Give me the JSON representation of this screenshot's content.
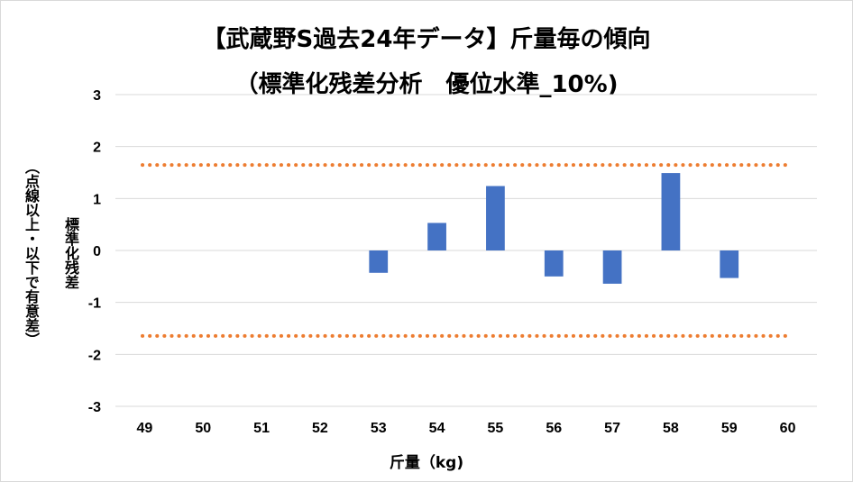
{
  "chart_data": {
    "type": "bar",
    "title_line1": "【武蔵野S過去24年データ】斤量毎の傾向",
    "title_line2": "（標準化残差分析　優位水準_10%)",
    "xlabel": "斤量（kg)",
    "ylabel_line1": "標準化残差",
    "ylabel_line2": "（点線以上・以下で有意差）",
    "categories": [
      "49",
      "50",
      "51",
      "52",
      "53",
      "54",
      "55",
      "56",
      "57",
      "58",
      "59",
      "60"
    ],
    "values": [
      null,
      null,
      null,
      null,
      -0.43,
      0.53,
      1.24,
      -0.5,
      -0.64,
      1.49,
      -0.53,
      null
    ],
    "ylim": [
      -3,
      3
    ],
    "yticks": [
      "3",
      "2",
      "1",
      "0",
      "-1",
      "-2",
      "-3"
    ],
    "threshold_upper": 1.645,
    "threshold_lower": -1.645,
    "grid": true,
    "colors": {
      "bar": "#4472c4",
      "threshold": "#ed7d31",
      "grid": "#d9d9d9"
    }
  }
}
